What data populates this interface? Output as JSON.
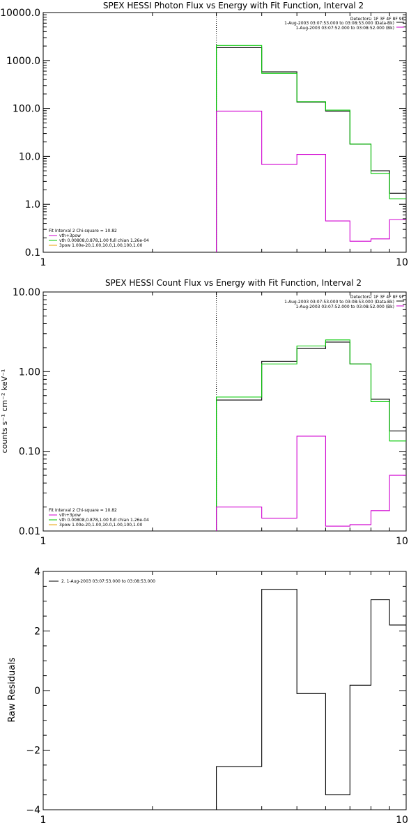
{
  "colors": {
    "black": "#000000",
    "green": "#00c800",
    "magenta": "#d000d0",
    "orange": "#e8a000"
  },
  "chart_data": [
    {
      "type": "line",
      "title": "SPEX HESSI Photon Flux vs Energy with Fit Function, Interval 2",
      "xscale": "log",
      "yscale": "log",
      "xlim": [
        1,
        10
      ],
      "ylim": [
        0.1,
        10000
      ],
      "x_ticks": [
        "1",
        "10"
      ],
      "y_ticks": [
        "0.1",
        "1.0",
        "10.0",
        "100.0",
        "1000.0",
        "10000.0"
      ],
      "vline_x": 3,
      "bin_edges": [
        3,
        4,
        5,
        6,
        7,
        8,
        9,
        10
      ],
      "series": [
        {
          "color": "black",
          "values": [
            1850,
            580,
            135,
            88,
            18,
            5,
            1.7
          ]
        },
        {
          "color": "green",
          "values": [
            2050,
            540,
            138,
            92,
            18,
            4.4,
            1.3
          ]
        },
        {
          "color": "magenta",
          "values": [
            88,
            6.8,
            11,
            0.45,
            0.17,
            0.19,
            0.48
          ]
        }
      ],
      "legend_top": {
        "line1": "Detectors: 1F 3F 4F 8F 9F",
        "line2": "1-Aug-2003 03:07:53.000 to 03:08:53.000 (Data-Bk)",
        "line3": "1-Aug-2003 03:07:52.000 to 03:08:52.000 (Bk)"
      },
      "legend_fit": {
        "header": "Fit Interval 2   Chi-square = 10.82",
        "items": [
          {
            "label": "vth+3pow",
            "color": "magenta"
          },
          {
            "label": "vth 0.00808,0.878,1.00   full chian 1.26e-04",
            "color": "green"
          },
          {
            "label": "3pow 1.00e-20,1.00,10.0,1.00,100,1.00",
            "color": "orange"
          }
        ]
      }
    },
    {
      "type": "line",
      "title": "SPEX HESSI Count Flux vs Energy with Fit Function, Interval 2",
      "ylabel": "counts s⁻¹ cm⁻² keV⁻¹",
      "xscale": "log",
      "yscale": "log",
      "xlim": [
        1,
        10
      ],
      "ylim": [
        0.01,
        10
      ],
      "x_ticks": [
        "1",
        "10"
      ],
      "y_ticks": [
        "0.01",
        "0.10",
        "1.00",
        "10.00"
      ],
      "vline_x": 3,
      "bin_edges": [
        3,
        4,
        5,
        6,
        7,
        8,
        9,
        10
      ],
      "series": [
        {
          "color": "black",
          "values": [
            0.44,
            1.35,
            1.95,
            2.35,
            1.25,
            0.45,
            0.18
          ]
        },
        {
          "color": "green",
          "values": [
            0.48,
            1.25,
            2.1,
            2.5,
            1.25,
            0.42,
            0.135
          ]
        },
        {
          "color": "magenta",
          "values": [
            0.02,
            0.0145,
            0.155,
            0.0115,
            0.012,
            0.018,
            0.05
          ]
        }
      ],
      "legend_top": {
        "line1": "Detectors: 1F 3F 4F 8F 9F",
        "line2": "1-Aug-2003 03:07:53.000 to 03:08:53.000 (Data-Bk)",
        "line3": "1-Aug-2003 03:07:52.000 to 03:08:52.000 (Bk)"
      },
      "legend_fit": {
        "header": "Fit Interval 2   Chi-square = 10.82",
        "items": [
          {
            "label": "vth+3pow",
            "color": "magenta"
          },
          {
            "label": "vth 0.00808,0.878,1.00   full chian 1.26e-04",
            "color": "green"
          },
          {
            "label": "3pow 1.00e-20,1.00,10.0,1.00,100,1.00",
            "color": "orange"
          }
        ]
      }
    },
    {
      "type": "line",
      "ylabel": "Raw Residuals",
      "xscale": "log",
      "yscale": "linear",
      "xlim": [
        1,
        10
      ],
      "ylim": [
        -4,
        4
      ],
      "x_ticks": [
        "1",
        "10"
      ],
      "y_ticks": [
        "−4",
        "−2",
        "0",
        "2",
        "4"
      ],
      "bin_edges": [
        3,
        4,
        5,
        6,
        7,
        8,
        9,
        10
      ],
      "series": [
        {
          "color": "black",
          "values": [
            -2.55,
            3.4,
            -0.1,
            -3.5,
            0.18,
            3.05,
            2.2
          ]
        }
      ],
      "legend": "2. 1-Aug-2003 03:07:53.000 to 03:08:53.000"
    }
  ]
}
